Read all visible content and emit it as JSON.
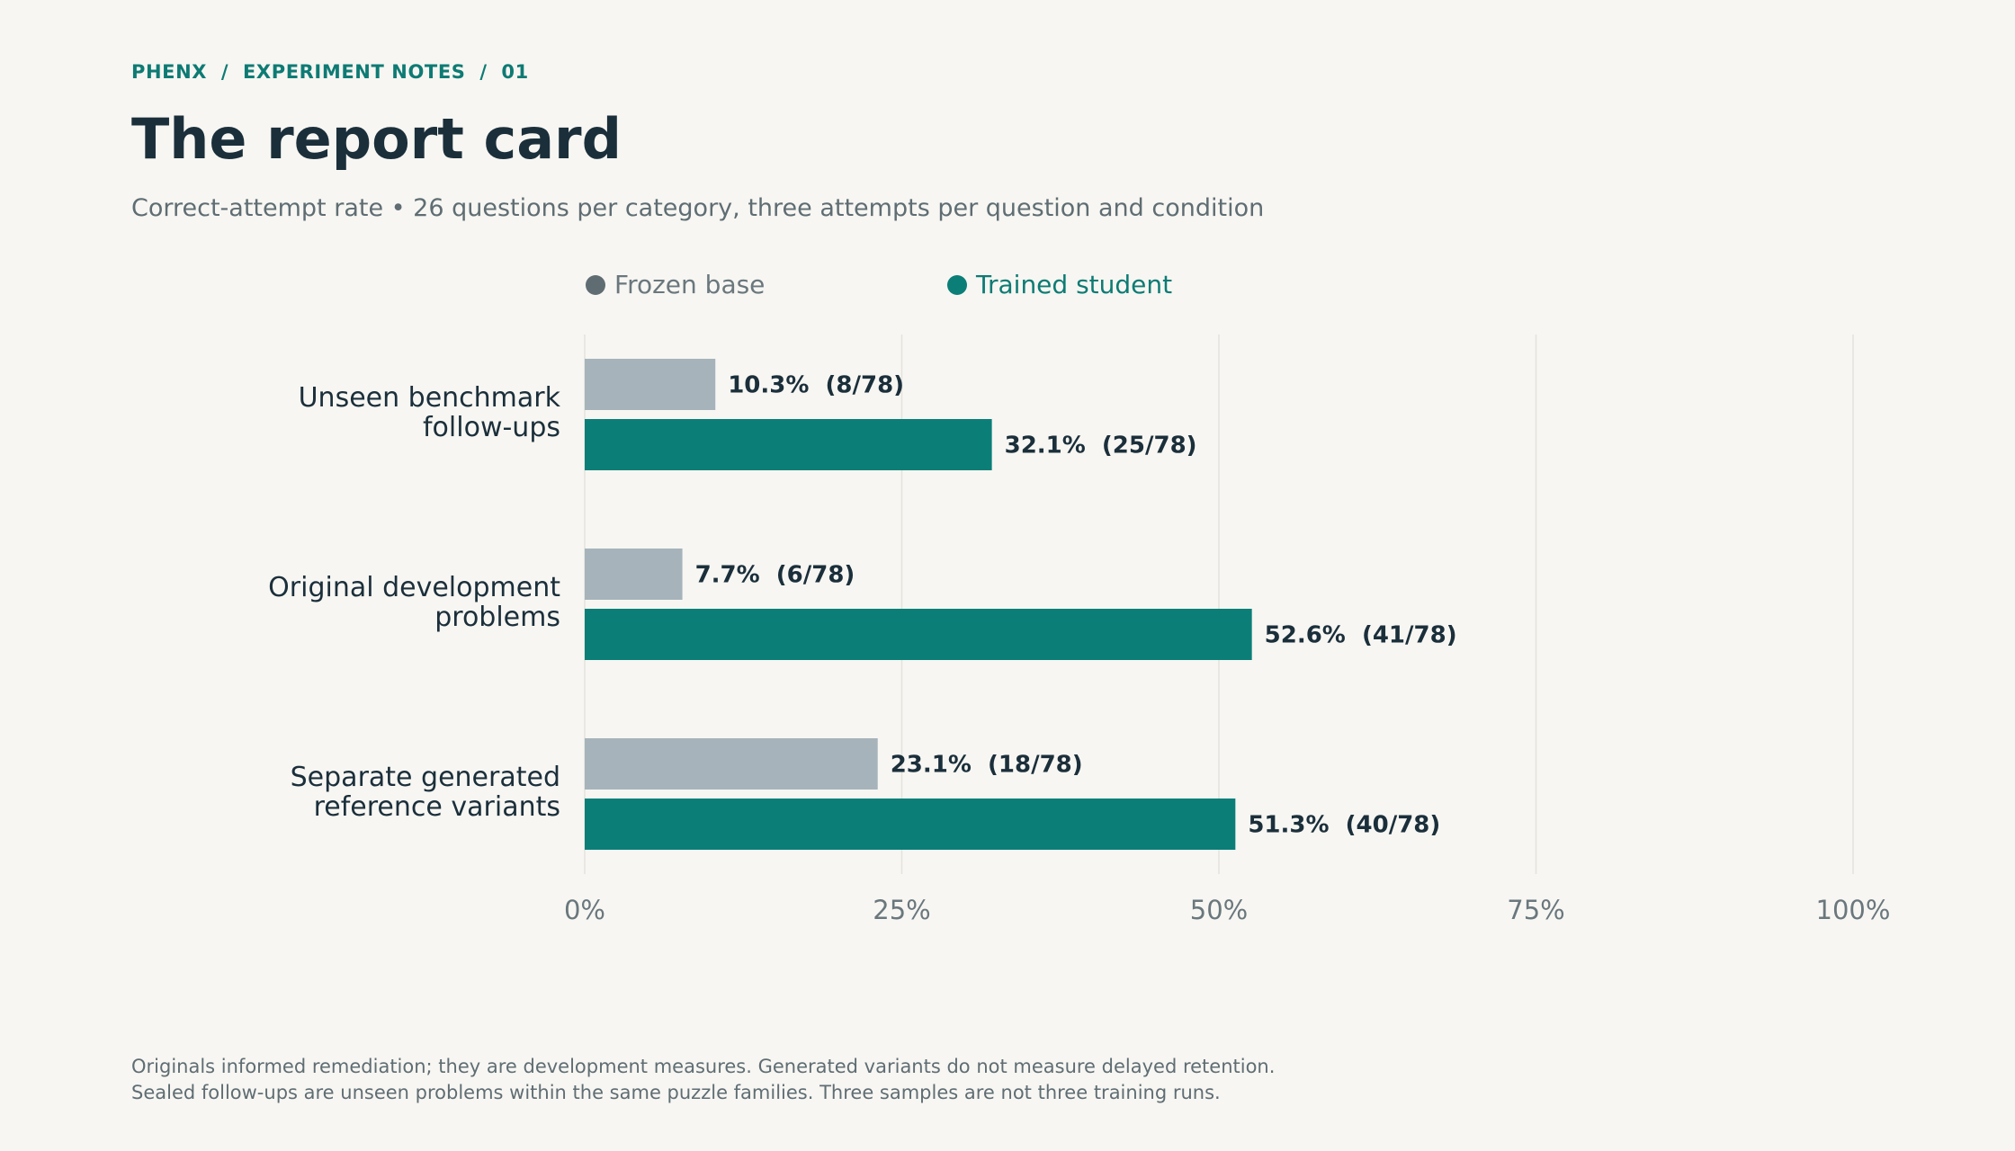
{
  "header": {
    "breadcrumb": "PHENX  /  EXPERIMENT NOTES  /  01",
    "title": "The report card",
    "subtitle": "Correct-attempt rate • 26 questions per category, three attempts per question and condition"
  },
  "legend": {
    "frozen": "Frozen base",
    "trained": "Trained student"
  },
  "colors": {
    "frozen": "#a6b3ba",
    "trained": "#0b7e78",
    "frozen_dot": "#5f6d73",
    "trained_dot": "#0b7e78",
    "grid": "#e4e2dc",
    "label": "#1b2f3b",
    "tick": "#6a777d"
  },
  "chart_data": {
    "type": "bar",
    "orientation": "horizontal",
    "categories": [
      [
        "Unseen benchmark",
        "follow-ups"
      ],
      [
        "Original development",
        "problems"
      ],
      [
        "Separate generated",
        "reference variants"
      ]
    ],
    "series": [
      {
        "name": "Frozen base",
        "values": [
          10.3,
          7.7,
          23.1
        ],
        "labels": [
          "10.3%  (8/78)",
          "7.7%  (6/78)",
          "23.1%  (18/78)"
        ]
      },
      {
        "name": "Trained student",
        "values": [
          32.1,
          52.6,
          51.3
        ],
        "labels": [
          "32.1%  (25/78)",
          "52.6%  (41/78)",
          "51.3%  (40/78)"
        ]
      }
    ],
    "xlim": [
      0,
      100
    ],
    "xticks": [
      0,
      25,
      50,
      75,
      100
    ],
    "xtick_labels": [
      "0%",
      "25%",
      "50%",
      "75%",
      "100%"
    ],
    "grid": "vertical",
    "legend_position": "top"
  },
  "footnotes": [
    "Originals informed remediation; they are development measures. Generated variants do not measure delayed retention.",
    "Sealed follow-ups are unseen problems within the same puzzle families. Three samples are not three training runs."
  ]
}
